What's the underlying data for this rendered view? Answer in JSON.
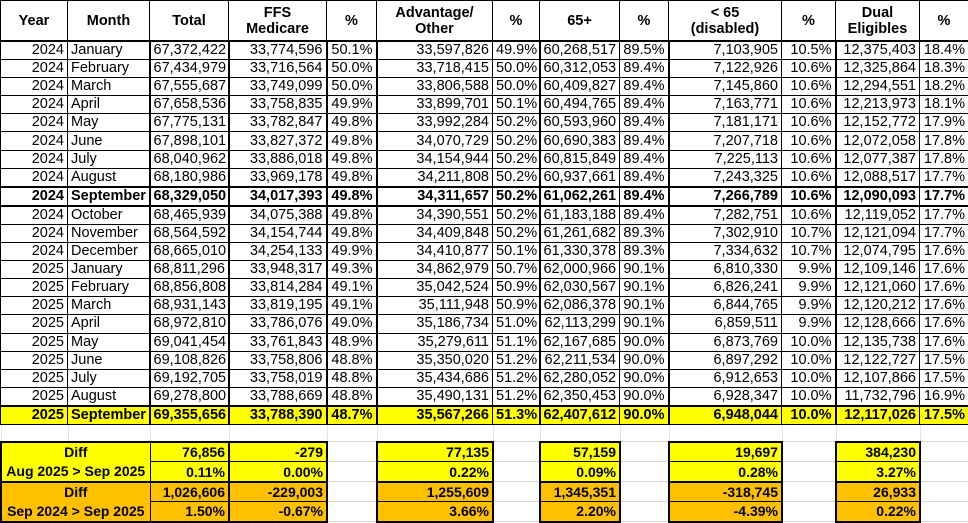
{
  "headers": [
    "Year",
    "Month",
    "Total",
    "FFS\nMedicare",
    "%",
    "Advantage/\nOther",
    "%",
    "65+",
    "%",
    "< 65\n(disabled)",
    "%",
    "Dual\nEligibles",
    "%"
  ],
  "rows": [
    [
      "2024",
      "January",
      "67,372,422",
      "33,774,596",
      "50.1%",
      "33,597,826",
      "49.9%",
      "60,268,517",
      "89.5%",
      "7,103,905",
      "10.5%",
      "12,375,403",
      "18.4%"
    ],
    [
      "2024",
      "February",
      "67,434,979",
      "33,716,564",
      "50.0%",
      "33,718,415",
      "50.0%",
      "60,312,053",
      "89.4%",
      "7,122,926",
      "10.6%",
      "12,325,864",
      "18.3%"
    ],
    [
      "2024",
      "March",
      "67,555,687",
      "33,749,099",
      "50.0%",
      "33,806,588",
      "50.0%",
      "60,409,827",
      "89.4%",
      "7,145,860",
      "10.6%",
      "12,294,551",
      "18.2%"
    ],
    [
      "2024",
      "April",
      "67,658,536",
      "33,758,835",
      "49.9%",
      "33,899,701",
      "50.1%",
      "60,494,765",
      "89.4%",
      "7,163,771",
      "10.6%",
      "12,213,973",
      "18.1%"
    ],
    [
      "2024",
      "May",
      "67,775,131",
      "33,782,847",
      "49.8%",
      "33,992,284",
      "50.2%",
      "60,593,960",
      "89.4%",
      "7,181,171",
      "10.6%",
      "12,152,772",
      "17.9%"
    ],
    [
      "2024",
      "June",
      "67,898,101",
      "33,827,372",
      "49.8%",
      "34,070,729",
      "50.2%",
      "60,690,383",
      "89.4%",
      "7,207,718",
      "10.6%",
      "12,072,058",
      "17.8%"
    ],
    [
      "2024",
      "July",
      "68,040,962",
      "33,886,018",
      "49.8%",
      "34,154,944",
      "50.2%",
      "60,815,849",
      "89.4%",
      "7,225,113",
      "10.6%",
      "12,077,387",
      "17.8%"
    ],
    [
      "2024",
      "August",
      "68,180,986",
      "33,969,178",
      "49.8%",
      "34,211,808",
      "50.2%",
      "60,937,661",
      "89.4%",
      "7,243,325",
      "10.6%",
      "12,088,517",
      "17.7%"
    ],
    [
      "2024",
      "September",
      "68,329,050",
      "34,017,393",
      "49.8%",
      "34,311,657",
      "50.2%",
      "61,062,261",
      "89.4%",
      "7,266,789",
      "10.6%",
      "12,090,093",
      "17.7%"
    ],
    [
      "2024",
      "October",
      "68,465,939",
      "34,075,388",
      "49.8%",
      "34,390,551",
      "50.2%",
      "61,183,188",
      "89.4%",
      "7,282,751",
      "10.6%",
      "12,119,052",
      "17.7%"
    ],
    [
      "2024",
      "November",
      "68,564,592",
      "34,154,744",
      "49.8%",
      "34,409,848",
      "50.2%",
      "61,261,682",
      "89.3%",
      "7,302,910",
      "10.7%",
      "12,121,094",
      "17.7%"
    ],
    [
      "2024",
      "December",
      "68,665,010",
      "34,254,133",
      "49.9%",
      "34,410,877",
      "50.1%",
      "61,330,378",
      "89.3%",
      "7,334,632",
      "10.7%",
      "12,074,795",
      "17.6%"
    ],
    [
      "2025",
      "January",
      "68,811,296",
      "33,948,317",
      "49.3%",
      "34,862,979",
      "50.7%",
      "62,000,966",
      "90.1%",
      "6,810,330",
      "9.9%",
      "12,109,146",
      "17.6%"
    ],
    [
      "2025",
      "February",
      "68,856,808",
      "33,814,284",
      "49.1%",
      "35,042,524",
      "50.9%",
      "62,030,567",
      "90.1%",
      "6,826,241",
      "9.9%",
      "12,121,060",
      "17.6%"
    ],
    [
      "2025",
      "March",
      "68,931,143",
      "33,819,195",
      "49.1%",
      "35,111,948",
      "50.9%",
      "62,086,378",
      "90.1%",
      "6,844,765",
      "9.9%",
      "12,120,212",
      "17.6%"
    ],
    [
      "2025",
      "April",
      "68,972,810",
      "33,786,076",
      "49.0%",
      "35,186,734",
      "51.0%",
      "62,113,299",
      "90.1%",
      "6,859,511",
      "9.9%",
      "12,128,666",
      "17.6%"
    ],
    [
      "2025",
      "May",
      "69,041,454",
      "33,761,843",
      "48.9%",
      "35,279,611",
      "51.1%",
      "62,167,685",
      "90.0%",
      "6,873,769",
      "10.0%",
      "12,135,738",
      "17.6%"
    ],
    [
      "2025",
      "June",
      "69,108,826",
      "33,758,806",
      "48.8%",
      "35,350,020",
      "51.2%",
      "62,211,534",
      "90.0%",
      "6,897,292",
      "10.0%",
      "12,122,727",
      "17.5%"
    ],
    [
      "2025",
      "July",
      "69,192,705",
      "33,758,019",
      "48.8%",
      "35,434,686",
      "51.2%",
      "62,280,052",
      "90.0%",
      "6,912,653",
      "10.0%",
      "12,107,866",
      "17.5%"
    ],
    [
      "2025",
      "August",
      "69,278,800",
      "33,788,669",
      "48.8%",
      "35,490,131",
      "51.2%",
      "62,350,453",
      "90.0%",
      "6,928,347",
      "10.0%",
      "11,732,796",
      "16.9%"
    ],
    [
      "2025",
      "September",
      "69,355,656",
      "33,788,390",
      "48.7%",
      "35,567,266",
      "51.3%",
      "62,407,612",
      "90.0%",
      "6,948,044",
      "10.0%",
      "12,117,026",
      "17.5%"
    ]
  ],
  "summary": [
    {
      "label": "Diff",
      "values": [
        "76,856",
        "-279",
        "77,135",
        "57,159",
        "19,697",
        "384,230"
      ]
    },
    {
      "label": "Aug 2025 > Sep 2025",
      "values": [
        "0.11%",
        "0.00%",
        "0.22%",
        "0.09%",
        "0.28%",
        "3.27%"
      ]
    },
    {
      "label": "Diff",
      "values": [
        "1,026,606",
        "-229,003",
        "1,255,609",
        "1,345,351",
        "-318,745",
        "26,933"
      ]
    },
    {
      "label": "Sep 2024 > Sep 2025",
      "values": [
        "1.50%",
        "-0.67%",
        "3.66%",
        "2.20%",
        "-4.39%",
        "0.22%"
      ]
    }
  ],
  "colors": {
    "highlight_yellow": "#ffff00",
    "highlight_orange": "#ffc000"
  }
}
